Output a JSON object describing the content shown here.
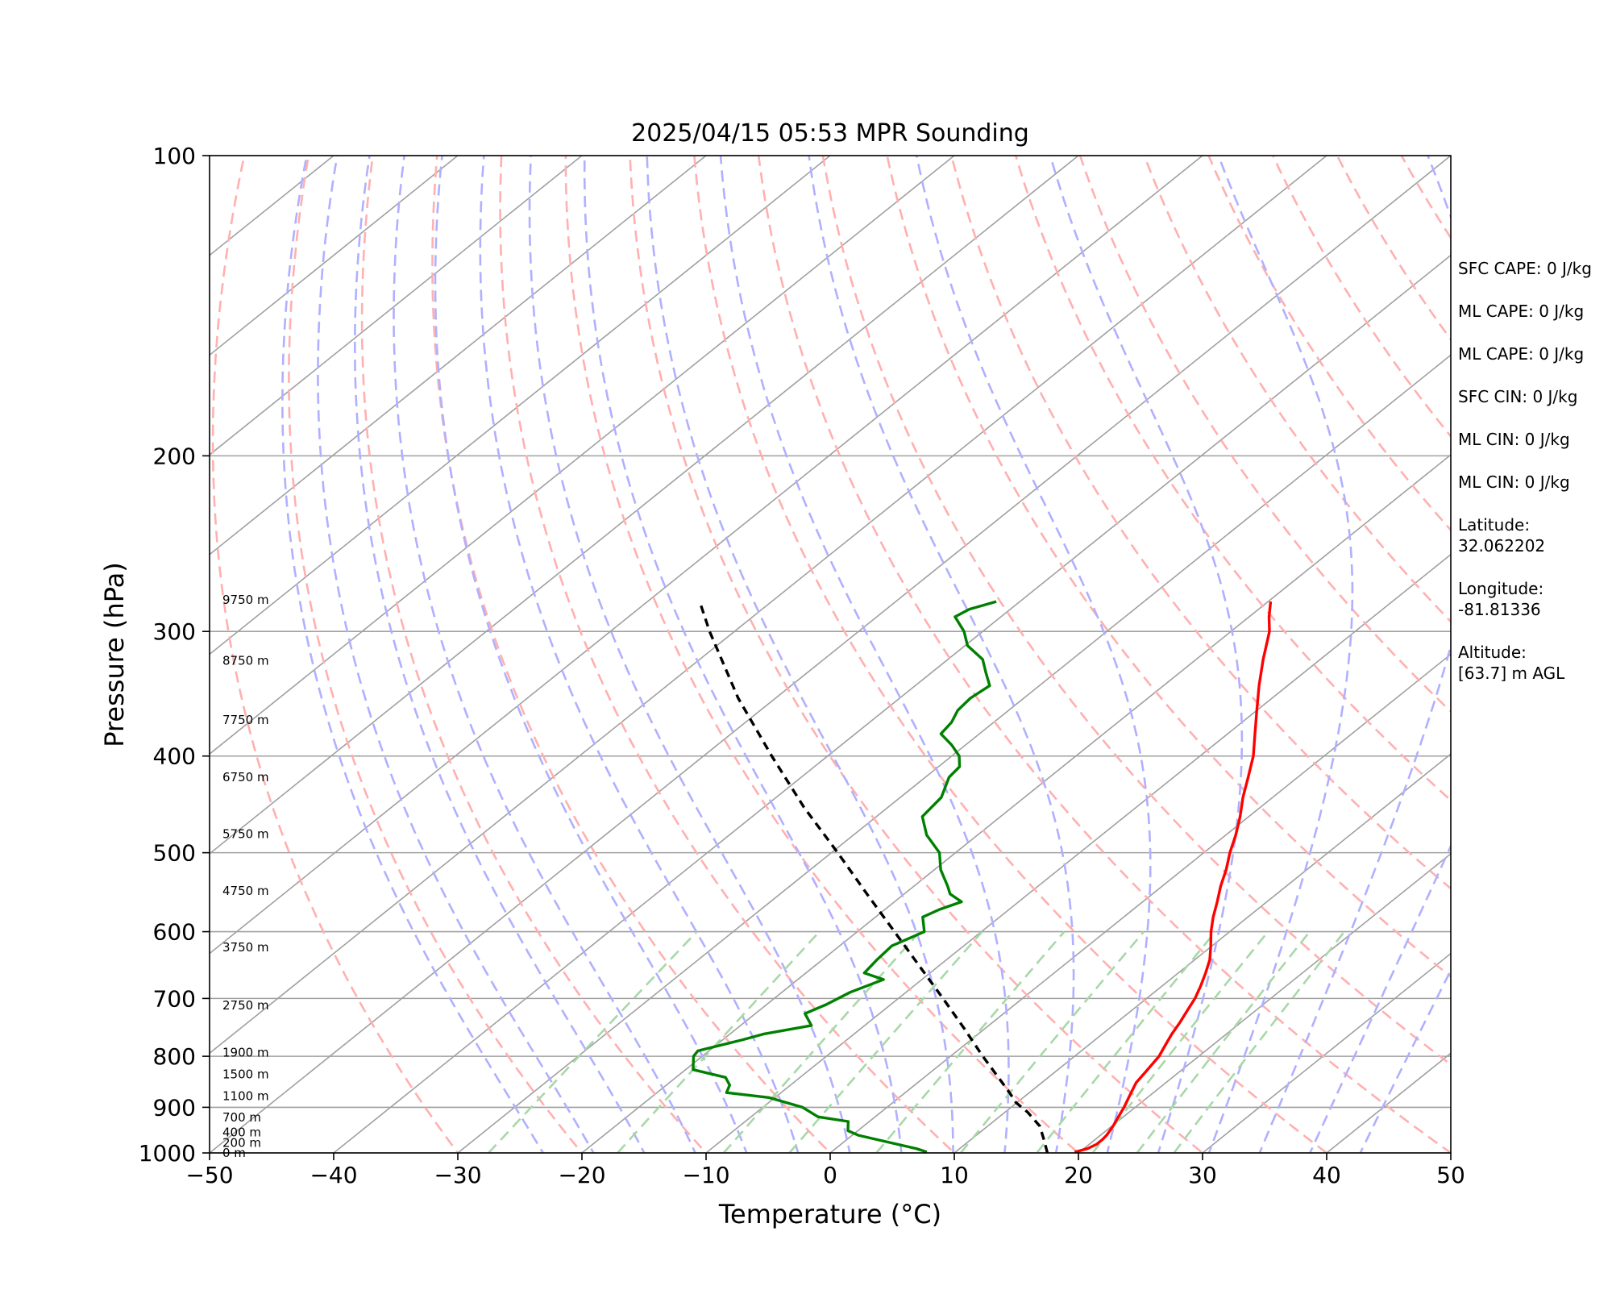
{
  "chart_data": {
    "type": "line",
    "title": "2025/04/15 05:53 MPR Sounding",
    "xlabel": "Temperature (°C)",
    "ylabel": "Pressure (hPa)",
    "xlim": [
      -50,
      50
    ],
    "ylim": [
      1000,
      100
    ],
    "y_scale": "log",
    "skew": true,
    "x_ticks": [
      -50,
      -40,
      -30,
      -20,
      -10,
      0,
      10,
      20,
      30,
      40,
      50
    ],
    "x_tick_labels": [
      "−50",
      "−40",
      "−30",
      "−20",
      "−10",
      "0",
      "10",
      "20",
      "30",
      "40",
      "50"
    ],
    "y_ticks": [
      1000,
      900,
      800,
      700,
      600,
      500,
      400,
      300,
      200,
      100
    ],
    "y_tick_labels": [
      "1000",
      "900",
      "800",
      "700",
      "600",
      "500",
      "400",
      "300",
      "200",
      "100"
    ],
    "grid": true,
    "colors": {
      "temperature": "#ff0000",
      "dewpoint": "#008000",
      "parcel": "#000000",
      "isotherm": "#a0a0a0",
      "dry_adiabat": "#ffb0b0",
      "moist_adiabat": "#b0b0ff",
      "mixing_ratio": "#a8d8a8"
    },
    "series": [
      {
        "key": "temperature",
        "pressure_hPa": [
          998,
          995,
          990,
          980,
          970,
          960,
          940,
          920,
          900,
          880,
          860,
          850,
          830,
          800,
          780,
          760,
          740,
          720,
          700,
          680,
          660,
          640,
          620,
          600,
          580,
          560,
          540,
          520,
          500,
          480,
          460,
          440,
          420,
          400,
          380,
          360,
          340,
          320,
          300,
          290,
          280
        ],
        "temp_C": [
          19.6,
          19.9,
          20.3,
          20.6,
          20.6,
          20.5,
          20.1,
          19.6,
          19.1,
          18.5,
          17.9,
          17.6,
          17.3,
          16.8,
          16.2,
          15.6,
          15.1,
          14.5,
          13.9,
          13.1,
          12.2,
          11.2,
          9.9,
          8.5,
          7.2,
          6.0,
          4.7,
          3.5,
          2.1,
          0.8,
          -0.7,
          -2.4,
          -4.0,
          -5.7,
          -7.8,
          -10.0,
          -12.3,
          -14.6,
          -16.9,
          -18.4,
          -19.8
        ]
      },
      {
        "key": "dewpoint",
        "pressure_hPa": [
          998,
          990,
          980,
          970,
          960,
          950,
          930,
          920,
          900,
          880,
          870,
          855,
          840,
          825,
          800,
          790,
          770,
          760,
          745,
          725,
          710,
          690,
          670,
          660,
          640,
          620,
          600,
          580,
          570,
          560,
          550,
          540,
          520,
          500,
          480,
          460,
          440,
          420,
          410,
          400,
          390,
          380,
          370,
          360,
          350,
          340,
          330,
          320,
          310,
          300,
          290,
          285,
          280
        ],
        "temp_C": [
          7.7,
          6.5,
          4.5,
          2.5,
          0.5,
          -0.8,
          -1.7,
          -4.6,
          -6.8,
          -10.5,
          -14.4,
          -14.9,
          -16.0,
          -19.4,
          -20.7,
          -20.9,
          -18.4,
          -17.3,
          -14.3,
          -16.0,
          -15.2,
          -14.5,
          -13.1,
          -15.3,
          -15.6,
          -15.8,
          -14.6,
          -16.2,
          -15.6,
          -14.6,
          -16.3,
          -17.3,
          -19.5,
          -21.3,
          -24.1,
          -26.3,
          -26.7,
          -28.1,
          -28.3,
          -29.4,
          -31.1,
          -33.1,
          -33.4,
          -34.1,
          -34.3,
          -34.0,
          -35.6,
          -37.2,
          -39.8,
          -41.5,
          -43.7,
          -43.3,
          -41.9
        ]
      },
      {
        "key": "parcel",
        "pressure_hPa": [
          1000,
          970,
          940,
          910,
          890,
          870,
          850,
          800,
          750,
          700,
          650,
          600,
          550,
          500,
          450,
          400,
          350,
          300,
          280
        ],
        "temp_C": [
          17.5,
          15.9,
          14.2,
          11.8,
          9.9,
          8.4,
          6.8,
          2.6,
          -1.7,
          -6.4,
          -11.5,
          -17.0,
          -23.0,
          -29.5,
          -36.8,
          -44.5,
          -53.0,
          -62.0,
          -65.8
        ]
      }
    ],
    "height_labels": [
      "0 m",
      "200 m",
      "400 m",
      "700 m",
      "1100 m",
      "1500 m",
      "1900 m",
      "2750 m",
      "3750 m",
      "4750 m",
      "5750 m",
      "6750 m",
      "7750 m",
      "8750 m",
      "9750 m"
    ],
    "height_label_pressures": [
      1000,
      977,
      954,
      921,
      877,
      834,
      793,
      711,
      622,
      546,
      479,
      420,
      368,
      321,
      279
    ],
    "info_panel": {
      "sfc_cape": "SFC CAPE: 0 J/kg",
      "ml_cape_1": "ML CAPE: 0 J/kg",
      "ml_cape_2": "ML CAPE: 0 J/kg",
      "sfc_cin": "SFC CIN: 0 J/kg",
      "ml_cin_1": "ML CIN: 0 J/kg",
      "ml_cin_2": "ML CIN: 0 J/kg",
      "latitude_label": "Latitude:",
      "latitude_value": "32.062202",
      "longitude_label": "Longitude:",
      "longitude_value": "-81.81336",
      "altitude_label": "Altitude:",
      "altitude_value": "[63.7] m AGL"
    }
  }
}
